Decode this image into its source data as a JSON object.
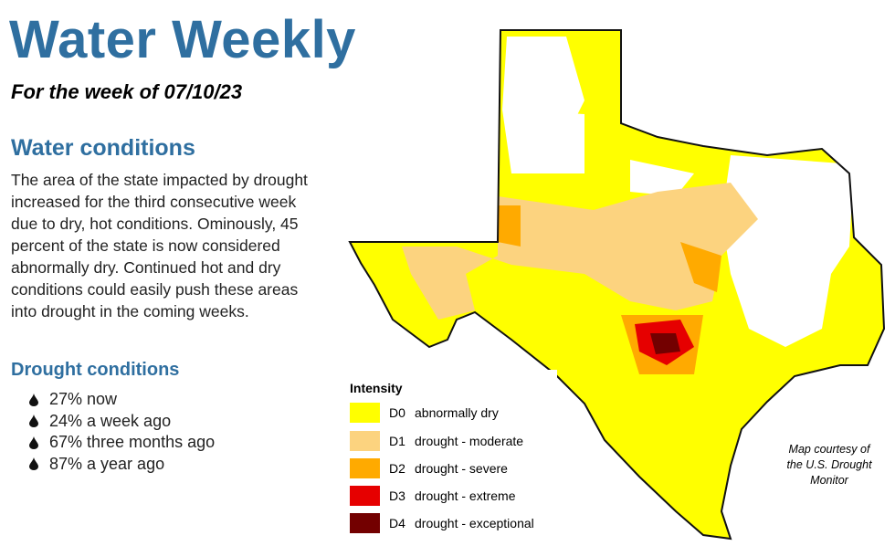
{
  "header": {
    "title": "Water Weekly",
    "subtitle": "For the week of 07/10/23"
  },
  "water_conditions": {
    "heading": "Water conditions",
    "text": "The area of the state impacted by drought increased for the third consecutive week due to dry, hot conditions. Ominously, 45 percent of the state is now considered abnormally dry. Continued hot and dry conditions could easily push these areas into drought in the coming weeks."
  },
  "drought_conditions": {
    "heading": "Drought conditions",
    "items": [
      "27% now",
      "24% a week ago",
      "67% three months ago",
      "87% a year ago"
    ]
  },
  "legend": {
    "title": "Intensity",
    "items": [
      {
        "code": "D0",
        "label": "abnormally dry",
        "color": "#ffff00"
      },
      {
        "code": "D1",
        "label": "drought - moderate",
        "color": "#fcd37f"
      },
      {
        "code": "D2",
        "label": "drought - severe",
        "color": "#ffaa00"
      },
      {
        "code": "D3",
        "label": "drought - extreme",
        "color": "#e60000"
      },
      {
        "code": "D4",
        "label": "drought - exceptional",
        "color": "#730000"
      }
    ]
  },
  "credit": [
    "Map courtesy of",
    "the U.S. Drought",
    "Monitor"
  ]
}
